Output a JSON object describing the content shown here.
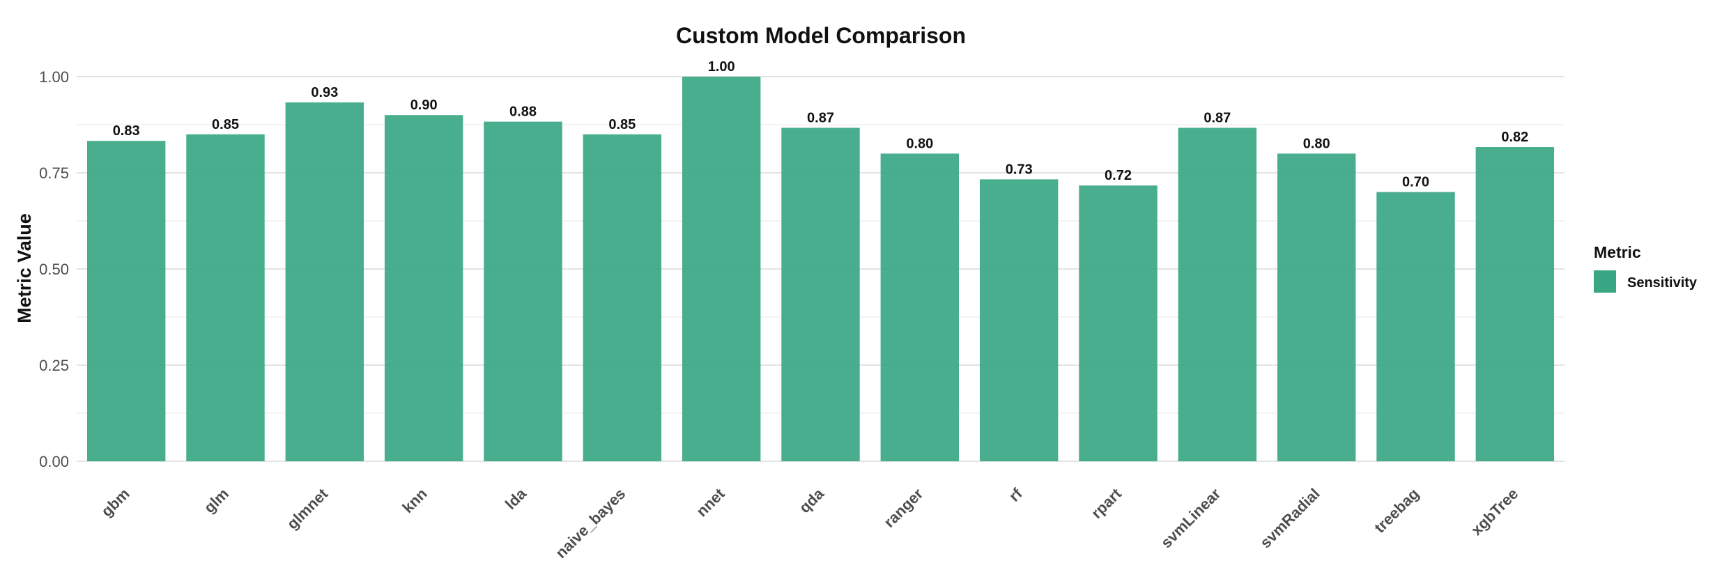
{
  "chart_data": {
    "type": "bar",
    "title": "Custom Model Comparison",
    "xlabel": "",
    "ylabel": "Metric Value",
    "ylim": [
      0,
      1.0
    ],
    "yticks": [
      "0.00",
      "0.25",
      "0.50",
      "0.75",
      "1.00"
    ],
    "grid": true,
    "legend_position": "right",
    "legend_title": "Metric",
    "categories": [
      "gbm",
      "glm",
      "glmnet",
      "knn",
      "lda",
      "naive_bayes",
      "nnet",
      "qda",
      "ranger",
      "rf",
      "rpart",
      "svmLinear",
      "svmRadial",
      "treebag",
      "xgbTree"
    ],
    "series": [
      {
        "name": "Sensitivity",
        "color": "#3aa784",
        "values": [
          0.833,
          0.85,
          0.933,
          0.9,
          0.883,
          0.85,
          1.0,
          0.867,
          0.8,
          0.733,
          0.717,
          0.867,
          0.8,
          0.7,
          0.817
        ],
        "labels": [
          "0.83",
          "0.85",
          "0.93",
          "0.90",
          "0.88",
          "0.85",
          "1.00",
          "0.87",
          "0.80",
          "0.73",
          "0.72",
          "0.87",
          "0.80",
          "0.70",
          "0.82"
        ]
      }
    ]
  }
}
